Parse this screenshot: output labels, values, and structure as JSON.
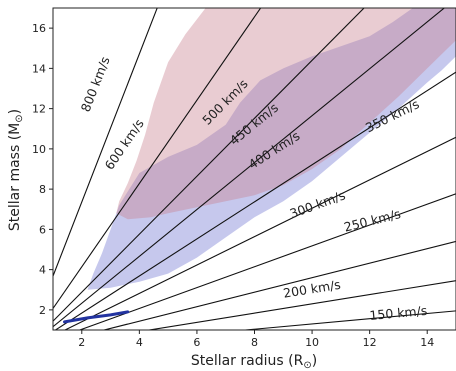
{
  "chart_data": {
    "type": "line",
    "xlabel": "Stellar radius (R",
    "xlabel_symbol": "⊙",
    "ylabel": "Stellar mass (M",
    "ylabel_symbol": "⊙",
    "xlim": [
      1,
      15
    ],
    "ylim": [
      1,
      17
    ],
    "xticks": [
      2,
      4,
      6,
      8,
      10,
      12,
      14
    ],
    "yticks": [
      2,
      4,
      6,
      8,
      10,
      12,
      14,
      16
    ],
    "grid": false,
    "contours": [
      {
        "label": "800 km/s",
        "slope": 3.68,
        "label_pos": [
          2.5,
          13.2
        ]
      },
      {
        "label": "600 km/s",
        "slope": 2.07,
        "label_pos": [
          3.5,
          10.2
        ]
      },
      {
        "label": "500 km/s",
        "slope": 1.44,
        "label_pos": [
          7.0,
          12.3
        ]
      },
      {
        "label": "450 km/s",
        "slope": 1.165,
        "label_pos": [
          8.0,
          11.2
        ]
      },
      {
        "label": "400 km/s",
        "slope": 0.921,
        "label_pos": [
          8.7,
          9.9
        ]
      },
      {
        "label": "350 km/s",
        "slope": 0.705,
        "label_pos": [
          12.8,
          11.6
        ]
      },
      {
        "label": "300 km/s",
        "slope": 0.518,
        "label_pos": [
          10.2,
          7.2
        ]
      },
      {
        "label": "250 km/s",
        "slope": 0.36,
        "label_pos": [
          12.1,
          6.4
        ]
      },
      {
        "label": "200 km/s",
        "slope": 0.23,
        "label_pos": [
          10.0,
          3.0
        ]
      },
      {
        "label": "150 km/s",
        "slope": 0.13,
        "label_pos": [
          13.0,
          1.8
        ]
      }
    ],
    "regions": [
      {
        "color": "#8e92db",
        "opacity": 0.5,
        "points": [
          [
            2.2,
            3.0
          ],
          [
            3.0,
            3.1
          ],
          [
            4.0,
            3.4
          ],
          [
            5.0,
            3.8
          ],
          [
            6.0,
            4.6
          ],
          [
            7.0,
            5.6
          ],
          [
            8.0,
            6.6
          ],
          [
            9.0,
            7.4
          ],
          [
            10.0,
            8.4
          ],
          [
            11.0,
            9.6
          ],
          [
            12.0,
            10.8
          ],
          [
            13.0,
            12.0
          ],
          [
            14.0,
            13.3
          ],
          [
            14.5,
            13.9
          ],
          [
            15.0,
            14.6
          ],
          [
            15.0,
            17.0
          ],
          [
            13.5,
            17.0
          ],
          [
            12.8,
            16.3
          ],
          [
            12.0,
            15.6
          ],
          [
            11.0,
            15.1
          ],
          [
            10.0,
            14.6
          ],
          [
            9.0,
            14.0
          ],
          [
            8.2,
            13.4
          ],
          [
            7.5,
            12.3
          ],
          [
            7.0,
            11.2
          ],
          [
            6.0,
            10.2
          ],
          [
            5.0,
            9.6
          ],
          [
            4.0,
            8.8
          ],
          [
            3.3,
            7.2
          ],
          [
            3.0,
            6.0
          ],
          [
            2.7,
            4.8
          ],
          [
            2.4,
            3.8
          ]
        ]
      },
      {
        "color": "#c7808f",
        "opacity": 0.4,
        "points": [
          [
            3.2,
            6.8
          ],
          [
            3.6,
            6.5
          ],
          [
            4.4,
            6.6
          ],
          [
            5.0,
            6.8
          ],
          [
            6.0,
            7.1
          ],
          [
            7.0,
            7.4
          ],
          [
            8.0,
            7.7
          ],
          [
            9.0,
            8.2
          ],
          [
            10.0,
            9.0
          ],
          [
            11.0,
            10.0
          ],
          [
            12.0,
            11.3
          ],
          [
            13.0,
            12.6
          ],
          [
            14.0,
            14.0
          ],
          [
            14.5,
            14.7
          ],
          [
            15.0,
            15.4
          ],
          [
            15.0,
            17.0
          ],
          [
            6.3,
            17.0
          ],
          [
            5.6,
            15.7
          ],
          [
            5.0,
            14.3
          ],
          [
            4.5,
            12.3
          ],
          [
            4.2,
            10.7
          ],
          [
            3.9,
            9.4
          ],
          [
            3.6,
            8.3
          ],
          [
            3.3,
            7.4
          ]
        ]
      }
    ],
    "segment": {
      "color": "#2233a0",
      "points": [
        [
          1.4,
          1.4
        ],
        [
          2.2,
          1.6
        ],
        [
          3.0,
          1.75
        ],
        [
          3.6,
          1.9
        ]
      ]
    }
  }
}
